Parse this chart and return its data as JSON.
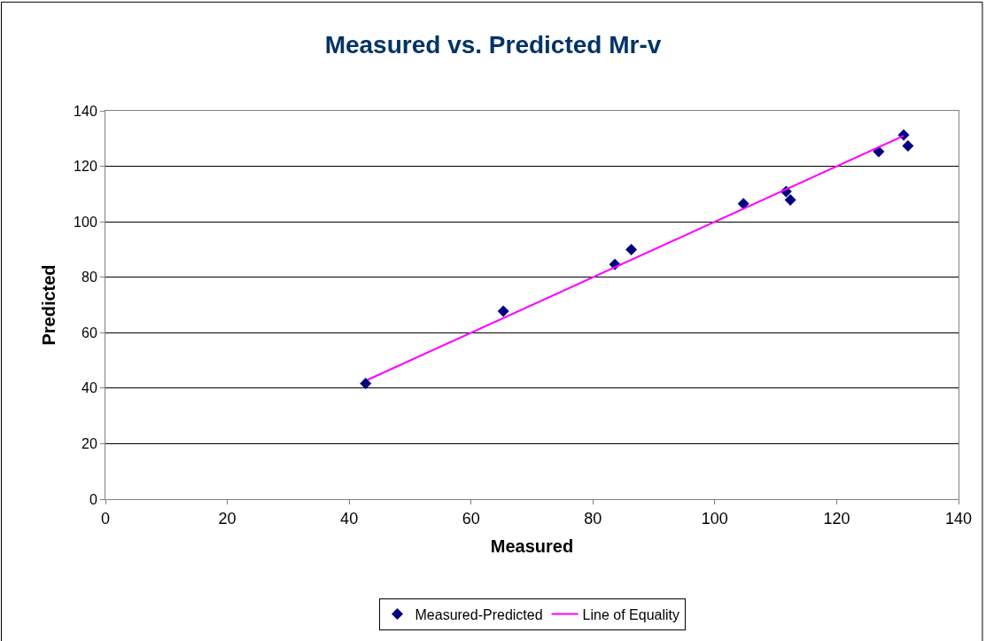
{
  "chart_data": {
    "type": "scatter",
    "title": "Measured vs. Predicted Mr-v",
    "xlabel": "Measured",
    "ylabel": "Predicted",
    "xlim": [
      0,
      140
    ],
    "xticks": [
      0,
      20,
      40,
      60,
      80,
      100,
      120,
      140
    ],
    "ylim": [
      0,
      140
    ],
    "yticks": [
      0,
      20,
      40,
      60,
      80,
      100,
      120,
      140
    ],
    "grid": "y",
    "legend": "bottom",
    "series": [
      {
        "name": "Measured-Predicted",
        "marker": "diamond",
        "color": "#000080",
        "x": [
          42.7,
          65.3,
          83.6,
          86.3,
          104.7,
          111.7,
          112.4,
          126.9,
          131.0,
          131.7
        ],
        "values": [
          41.7,
          67.8,
          84.6,
          90.0,
          106.5,
          110.9,
          107.9,
          125.3,
          131.3,
          127.4
        ]
      },
      {
        "name": "Line of Equality",
        "type": "line",
        "marker": "none",
        "line_style": "solid",
        "color": "#ff00ff",
        "x": [
          43,
          131
        ],
        "values": [
          43,
          131
        ]
      }
    ]
  }
}
